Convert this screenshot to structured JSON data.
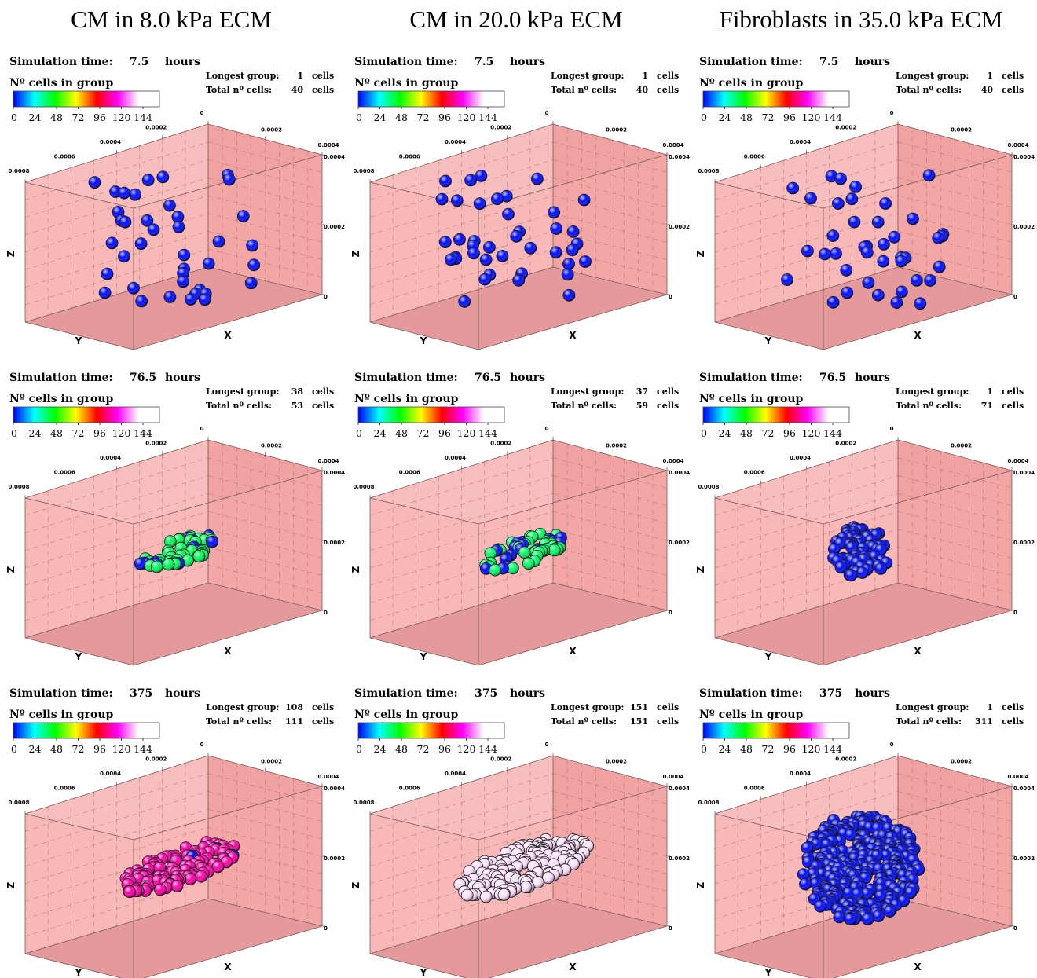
{
  "columns": [
    {
      "title": "CM in 8.0 kPa ECM",
      "panels": [
        {
          "time": 7.5,
          "longest": 1,
          "total": 40
        },
        {
          "time": 76.5,
          "longest": 38,
          "total": 53
        },
        {
          "time": 375,
          "longest": 108,
          "total": 111
        }
      ]
    },
    {
      "title": "CM in 20.0 kPa ECM",
      "panels": [
        {
          "time": 7.5,
          "longest": 1,
          "total": 40
        },
        {
          "time": 76.5,
          "longest": 37,
          "total": 59
        },
        {
          "time": 375,
          "longest": 151,
          "total": 151
        }
      ]
    },
    {
      "title": "Fibroblasts in 35.0 kPa ECM",
      "panels": [
        {
          "time": 7.5,
          "longest": 1,
          "total": 40
        },
        {
          "time": 76.5,
          "longest": 1,
          "total": 71
        },
        {
          "time": 375,
          "longest": 1,
          "total": 311
        }
      ]
    }
  ],
  "labels": {
    "sim_time": "Simulation time:",
    "hours": "hours",
    "cells_in_group": "Nº cells in group",
    "longest_group": "Longest group:",
    "total_cells": "Total nº cells:",
    "cells": "cells"
  },
  "colorbar": {
    "ticks": [
      0,
      24,
      48,
      72,
      96,
      120,
      144
    ]
  },
  "axes": {
    "x": {
      "label": "X",
      "ticks": [
        0.0002,
        0.0004
      ]
    },
    "y": {
      "label": "Y",
      "ticks": [
        0.0008,
        0.0006,
        0.0004,
        0.0002,
        0
      ]
    },
    "z": {
      "label": "Z",
      "ticks": [
        0.0004,
        0.0002,
        0
      ]
    }
  }
}
